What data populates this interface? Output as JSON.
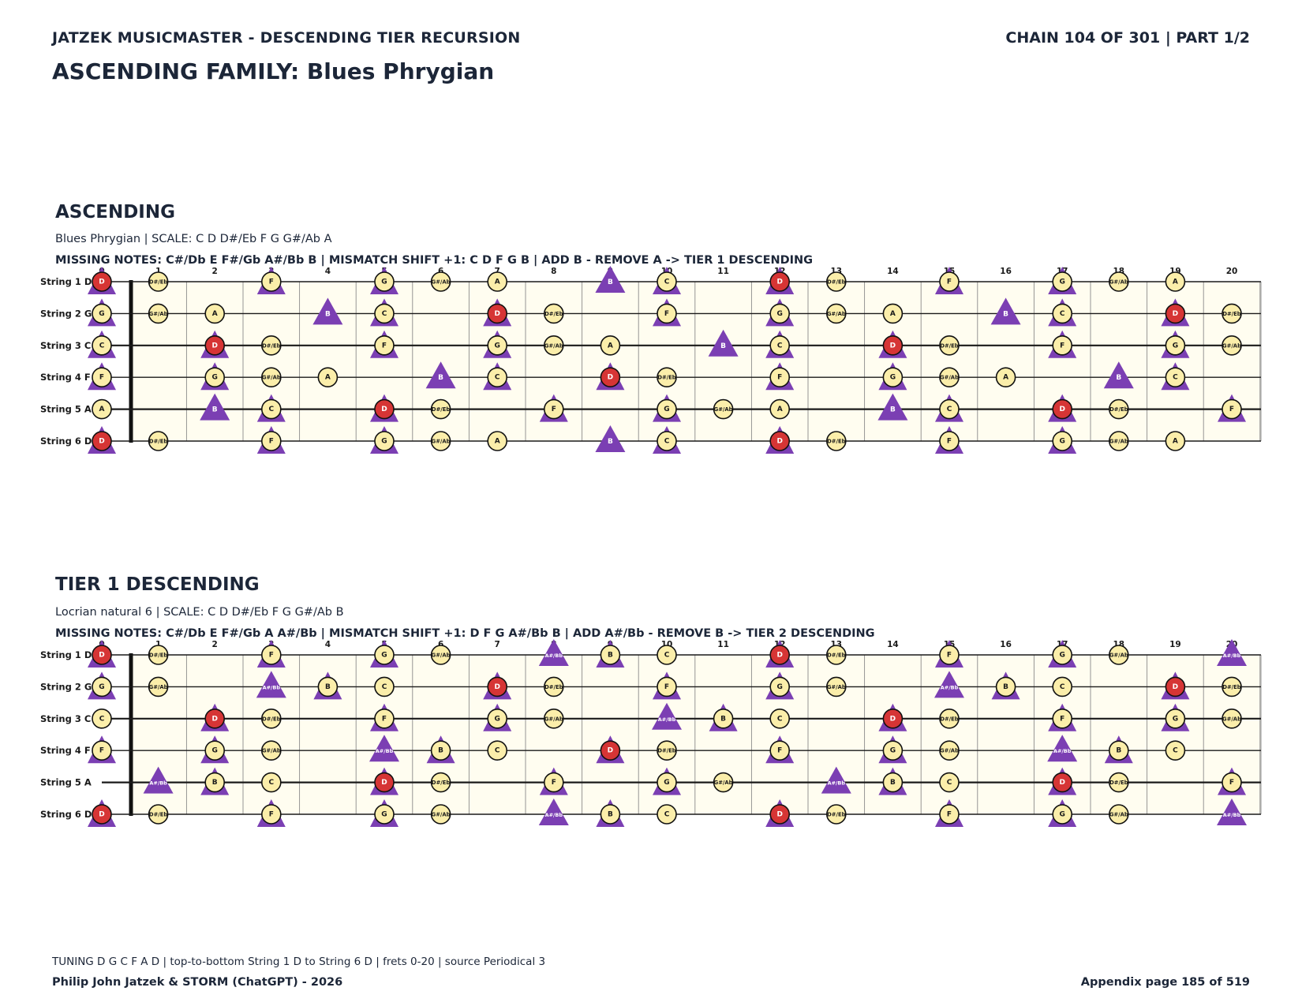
{
  "header": {
    "left": "JATZEK MUSICMASTER - DESCENDING TIER RECURSION",
    "right": "CHAIN 104 OF 301  |  PART 1/2",
    "title": "ASCENDING FAMILY: Blues Phrygian"
  },
  "sections": [
    {
      "title": "ASCENDING",
      "scale_line": "Blues Phrygian  |  SCALE: C D D#/Eb F G G#/Ab A",
      "missing_line": "MISSING NOTES: C#/Db E F#/Gb A#/Bb B  |  MISMATCH SHIFT +1: C D F G B  |  ADD B - REMOVE A -> TIER 1 DESCENDING",
      "added_note": "B",
      "removed_note": "A"
    },
    {
      "title": "TIER 1 DESCENDING",
      "scale_line": "Locrian natural 6  |  SCALE: C D D#/Eb F G G#/Ab B",
      "missing_line": "MISSING NOTES: C#/Db E F#/Gb A A#/Bb  |  MISMATCH SHIFT +1: D F G A#/Bb B  |  ADD A#/Bb - REMOVE B -> TIER 2 DESCENDING",
      "added_note": "A#/Bb",
      "removed_note": "B"
    }
  ],
  "fretboard": {
    "strings": [
      {
        "label": "String 1 D",
        "open": "D"
      },
      {
        "label": "String 2 G",
        "open": "G"
      },
      {
        "label": "String 3 C",
        "open": "C"
      },
      {
        "label": "String 4 F",
        "open": "F"
      },
      {
        "label": "String 5 A",
        "open": "A"
      },
      {
        "label": "String 6 D",
        "open": "D"
      }
    ],
    "frets": [
      "0",
      "1",
      "2",
      "3",
      "4",
      "5",
      "6",
      "7",
      "8",
      "9",
      "10",
      "11",
      "12",
      "13",
      "14",
      "15",
      "16",
      "17",
      "18",
      "19",
      "20"
    ],
    "chromatic": [
      "C",
      "C#/Db",
      "D",
      "D#/Eb",
      "E",
      "F",
      "F#/Gb",
      "G",
      "G#/Ab",
      "A",
      "A#/Bb",
      "B"
    ],
    "root_note": "D",
    "shift_notes": [
      [
        "C",
        "D",
        "F",
        "G",
        "B"
      ],
      [
        "D",
        "F",
        "G",
        "A#/Bb",
        "B"
      ]
    ]
  },
  "footer": {
    "tuning": "TUNING D G C F A D | top-to-bottom String 1 D to String 6 D | frets 0-20 | source Periodical 3",
    "author": "Philip John Jatzek & STORM (ChatGPT) - 2026",
    "page": "Appendix page 185 of 519"
  },
  "colors": {
    "board_bg": "#fffdf0",
    "scale_note": "#fbeeaa",
    "root_note": "#d63535",
    "marker": "#7b3fb3",
    "text": "#1c2638"
  }
}
